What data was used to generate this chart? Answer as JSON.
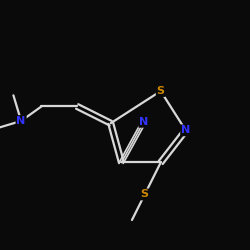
{
  "background_color": "#0a0a0a",
  "bond_color": "#d8d8d8",
  "atom_colors": {
    "N": "#3333ff",
    "S": "#cc8800",
    "C": "#d8d8d8"
  },
  "figsize": [
    2.5,
    2.5
  ],
  "dpi": 100
}
